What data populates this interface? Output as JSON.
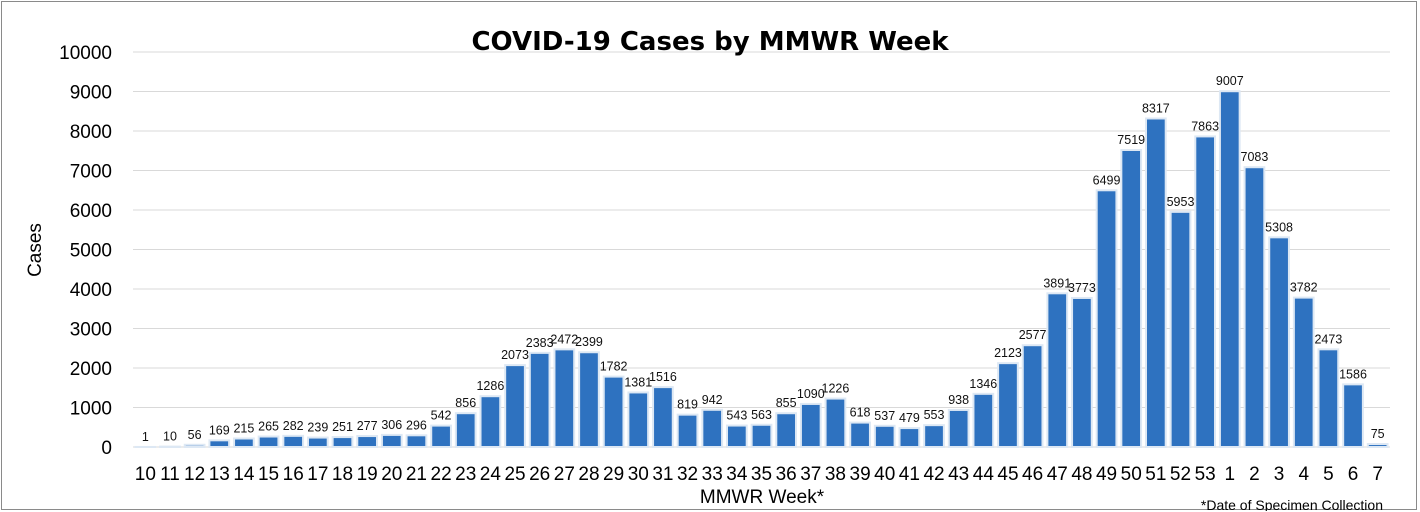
{
  "chart_data": {
    "type": "bar",
    "title": "COVID-19 Cases by MMWR Week",
    "xlabel": "MMWR Week*",
    "ylabel": "Cases",
    "footnote": "*Date of Specimen Collection",
    "ylim": [
      0,
      10000
    ],
    "yticks": [
      "0",
      "1000",
      "2000",
      "3000",
      "4000",
      "5000",
      "6000",
      "7000",
      "8000",
      "9000",
      "10000"
    ],
    "grid": true,
    "legend": "none",
    "colors": {
      "bar": "#2e72c0",
      "grid": "#d9d9d9"
    },
    "categories": [
      "10",
      "11",
      "12",
      "13",
      "14",
      "15",
      "16",
      "17",
      "18",
      "19",
      "20",
      "21",
      "22",
      "23",
      "24",
      "25",
      "26",
      "27",
      "28",
      "29",
      "30",
      "31",
      "32",
      "33",
      "34",
      "35",
      "36",
      "37",
      "38",
      "39",
      "40",
      "41",
      "42",
      "43",
      "44",
      "45",
      "46",
      "47",
      "48",
      "49",
      "50",
      "51",
      "52",
      "53",
      "1",
      "2",
      "3",
      "4",
      "5",
      "6",
      "7"
    ],
    "values": [
      1,
      10,
      56,
      169,
      215,
      265,
      282,
      239,
      251,
      277,
      306,
      296,
      542,
      856,
      1286,
      2073,
      2383,
      2472,
      2399,
      1782,
      1381,
      1516,
      819,
      942,
      543,
      563,
      855,
      1090,
      1226,
      618,
      537,
      479,
      553,
      938,
      1346,
      2123,
      2577,
      3891,
      3773,
      6499,
      7519,
      8317,
      5953,
      7863,
      9007,
      7083,
      5308,
      3782,
      2473,
      1586,
      75
    ]
  }
}
